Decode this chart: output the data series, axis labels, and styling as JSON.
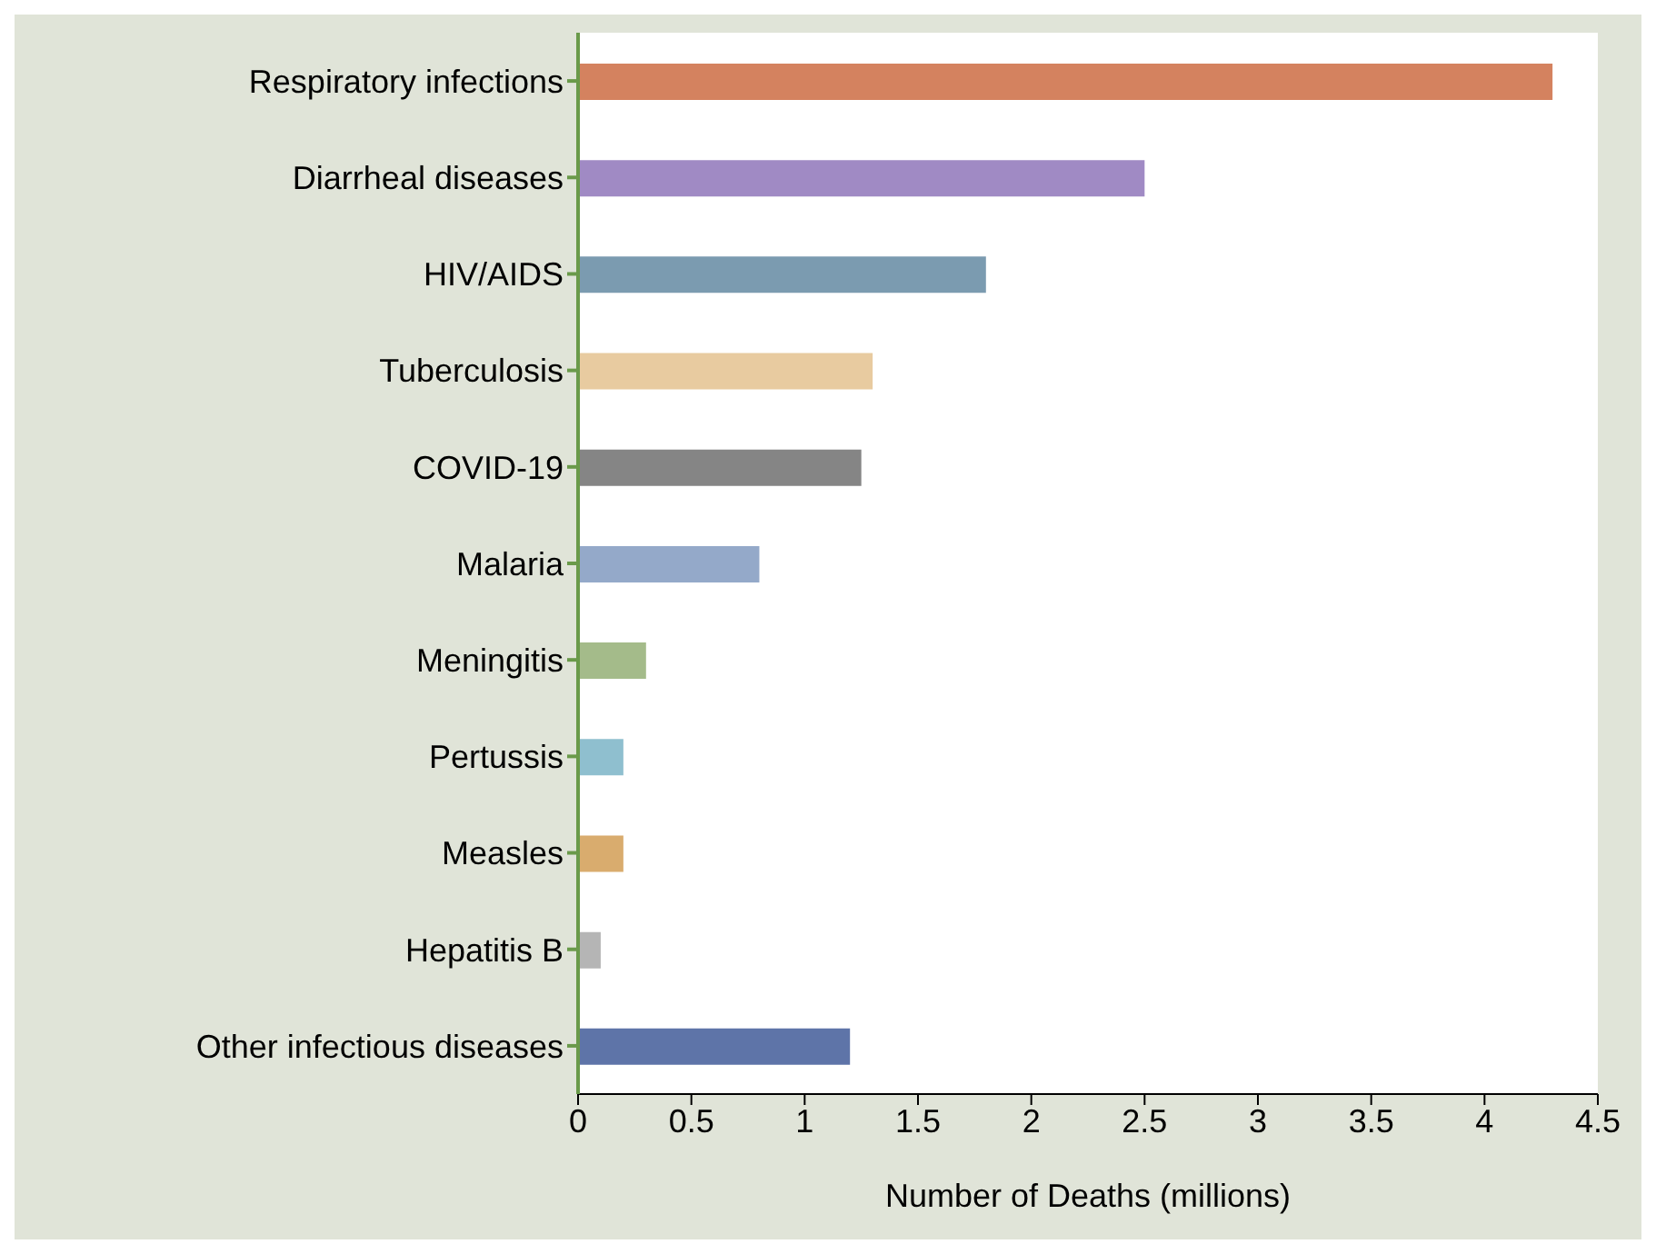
{
  "chart_data": {
    "type": "bar",
    "orientation": "horizontal",
    "xlabel": "Number of Deaths (millions)",
    "categories": [
      "Respiratory infections",
      "Diarrheal diseases",
      "HIV/AIDS",
      "Tuberculosis",
      "COVID-19",
      "Malaria",
      "Meningitis",
      "Pertussis",
      "Measles",
      "Hepatitis B",
      "Other infectious diseases"
    ],
    "values": [
      4.3,
      2.5,
      1.8,
      1.3,
      1.25,
      0.8,
      0.3,
      0.2,
      0.2,
      0.1,
      1.2
    ],
    "colors": [
      "#d4825f",
      "#a08ac4",
      "#7b9bb0",
      "#e8cba0",
      "#858585",
      "#94a9c9",
      "#a4bb8a",
      "#8fbfcf",
      "#d9ac6e",
      "#b5b5b5",
      "#5e74a8"
    ],
    "xlim": [
      0,
      4.5
    ],
    "xticks": [
      0,
      0.5,
      1,
      1.5,
      2,
      2.5,
      3,
      3.5,
      4,
      4.5
    ],
    "grid": false,
    "legend": false
  }
}
